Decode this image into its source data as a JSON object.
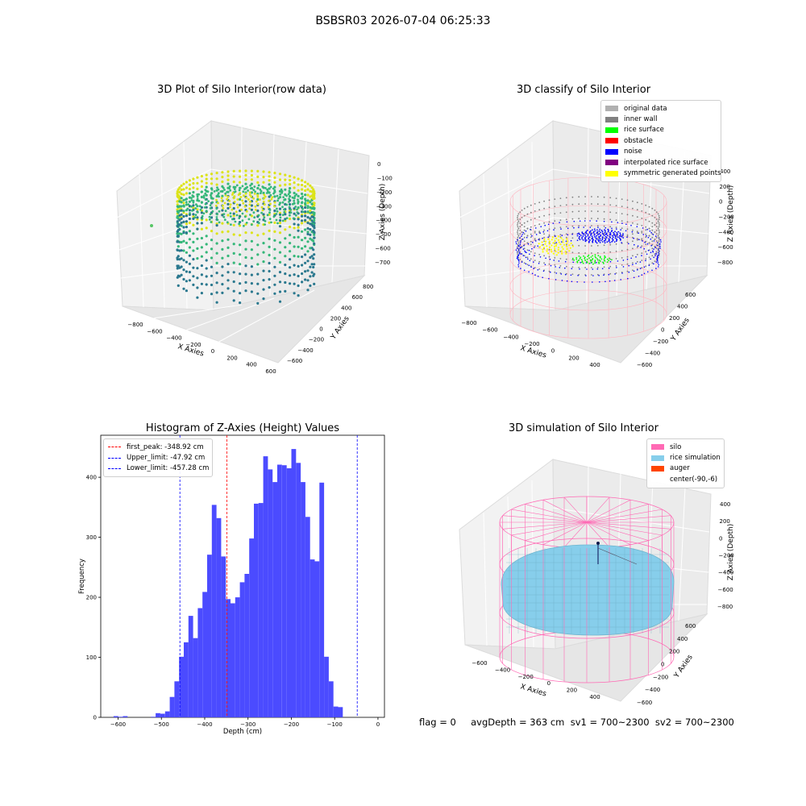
{
  "suptitle": "BSBSR03 2026-07-04 06:25:33",
  "footer_text": "flag = 0     avgDepth = 363 cm  sv1 = 700~2300  sv2 = 700~2300",
  "chart_data": [
    {
      "id": "raw",
      "type": "scatter",
      "projection": "3d",
      "title": "3D Plot of Silo Interior(row data)",
      "xlabel": "X Axies",
      "ylabel": "Y Axies",
      "zlabel": "Z Axies (Depth)",
      "x_ticks": [
        "−800",
        "−600",
        "−400",
        "−200",
        "0",
        "200",
        "400",
        "600"
      ],
      "y_ticks": [
        "−600",
        "−400",
        "−200",
        "0",
        "200",
        "400",
        "600",
        "800"
      ],
      "z_ticks": [
        "0",
        "−100",
        "−200",
        "−300",
        "−400",
        "−500",
        "−600",
        "−700"
      ],
      "colormap": "viridis",
      "colors": {
        "low": "#2a788e",
        "mid": "#35b779",
        "high": "#dce319"
      }
    },
    {
      "id": "classify",
      "type": "scatter",
      "projection": "3d",
      "title": "3D classify of Silo Interior",
      "xlabel": "X Axies",
      "ylabel": "Y Axies",
      "zlabel": "Z Axies (Depth)",
      "x_ticks": [
        "−800",
        "−600",
        "−400",
        "−200",
        "0",
        "200",
        "400"
      ],
      "y_ticks": [
        "−600",
        "−400",
        "−200",
        "0",
        "200",
        "400",
        "600"
      ],
      "z_ticks": [
        "400",
        "200",
        "0",
        "−200",
        "−400",
        "−600",
        "−800"
      ],
      "legend": [
        {
          "label": "original data",
          "color": "#b0b0b0"
        },
        {
          "label": "inner wall",
          "color": "#808080"
        },
        {
          "label": "rice surface",
          "color": "#00ff00"
        },
        {
          "label": "obstacle",
          "color": "#ff0000"
        },
        {
          "label": "noise",
          "color": "#0000ff"
        },
        {
          "label": "interpolated rice surface",
          "color": "#800080"
        },
        {
          "label": "symmetric generated points",
          "color": "#ffff00"
        }
      ],
      "wire_color": "#ffb6c1"
    },
    {
      "id": "histogram",
      "type": "bar",
      "title": "Histogram of Z-Axies (Height) Values",
      "xlabel": "Depth (cm)",
      "ylabel": "Frequency",
      "xlim": [
        -640,
        15
      ],
      "ylim": [
        0,
        470
      ],
      "x_ticks": [
        -600,
        -500,
        -400,
        -300,
        -200,
        -100,
        0
      ],
      "y_ticks": [
        0,
        100,
        200,
        300,
        400
      ],
      "bar_color": "#4b4bff",
      "bin_width": 10.8,
      "bins_start": [
        -610.4,
        -599.6,
        -588.8,
        -524.0,
        -513.2,
        -502.4,
        -491.6,
        -480.8,
        -470.0,
        -459.2,
        -448.4,
        -437.6,
        -426.8,
        -416.0,
        -405.2,
        -394.4,
        -383.6,
        -372.8,
        -362.0,
        -351.2,
        -340.4,
        -329.6,
        -318.8,
        -308.0,
        -297.2,
        -286.4,
        -275.6,
        -264.8,
        -254.0,
        -243.2,
        -232.4,
        -221.6,
        -210.8,
        -200.0,
        -189.2,
        -178.4,
        -167.6,
        -156.8,
        -146.0,
        -135.2,
        -124.4,
        -113.6,
        -102.8,
        -92.0,
        -81.2,
        -70.4,
        -59.6,
        -48.8,
        -38.0,
        -27.2,
        -16.4
      ],
      "counts": [
        2,
        1,
        2,
        1,
        7,
        6,
        10,
        34,
        60,
        101,
        125,
        169,
        132,
        182,
        209,
        271,
        354,
        332,
        268,
        197,
        190,
        200,
        225,
        239,
        298,
        356,
        357,
        435,
        413,
        392,
        421,
        420,
        415,
        447,
        424,
        392,
        334,
        263,
        260,
        391,
        101,
        60,
        18,
        17,
        0,
        0,
        0,
        0,
        0,
        0,
        0
      ],
      "lines": [
        {
          "label": "first_peak: -348.92 cm",
          "value": -348.92,
          "color": "#ff0000"
        },
        {
          "label": "Upper_limit: -47.92 cm",
          "value": -47.92,
          "color": "#0000ff"
        },
        {
          "label": "Lower_limit: -457.28 cm",
          "value": -457.28,
          "color": "#0000ff"
        }
      ]
    },
    {
      "id": "simulation",
      "type": "surface",
      "projection": "3d",
      "title": "3D simulation of Silo Interior",
      "xlabel": "X Axies",
      "ylabel": "Y Axies",
      "zlabel": "Z Axies (Depth)",
      "x_ticks": [
        "−600",
        "−400",
        "−200",
        "0",
        "200",
        "400"
      ],
      "y_ticks": [
        "−600",
        "−400",
        "−200",
        "0",
        "200",
        "400",
        "600"
      ],
      "z_ticks": [
        "400",
        "200",
        "0",
        "−200",
        "−400",
        "−600",
        "−800"
      ],
      "legend": [
        {
          "label": "silo",
          "color": "#ff69b4"
        },
        {
          "label": "rice simulation",
          "color": "#87ceeb"
        },
        {
          "label": "auger",
          "color": "#ff4500"
        },
        {
          "label": "center(-90,-6)",
          "color": "#ffffff"
        }
      ]
    }
  ]
}
